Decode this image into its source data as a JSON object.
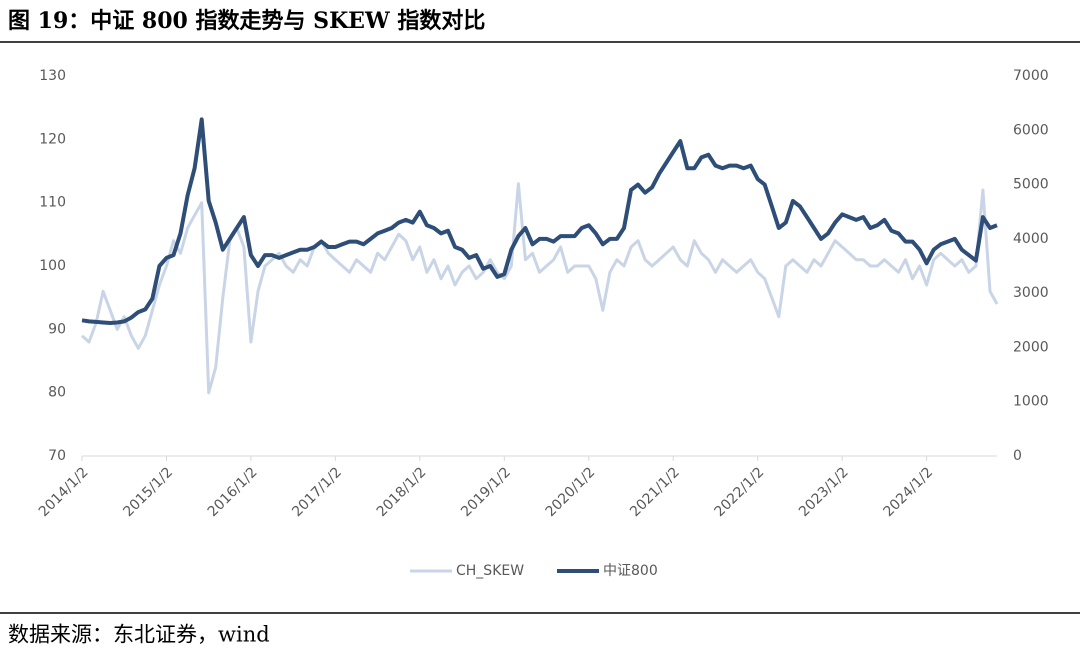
{
  "chart_data": {
    "type": "line",
    "title": "图 19：中证 800 指数走势与 SKEW 指数对比",
    "source": "数据来源：东北证券，wind",
    "categories": [
      "2014/1/2",
      null,
      null,
      null,
      null,
      null,
      null,
      null,
      null,
      null,
      null,
      null,
      "2015/1/2",
      null,
      null,
      null,
      null,
      null,
      null,
      null,
      null,
      null,
      null,
      null,
      "2016/1/2",
      null,
      null,
      null,
      null,
      null,
      null,
      null,
      null,
      null,
      null,
      null,
      "2017/1/2",
      null,
      null,
      null,
      null,
      null,
      null,
      null,
      null,
      null,
      null,
      null,
      "2018/1/2",
      null,
      null,
      null,
      null,
      null,
      null,
      null,
      null,
      null,
      null,
      null,
      "2019/1/2",
      null,
      null,
      null,
      null,
      null,
      null,
      null,
      null,
      null,
      null,
      null,
      "2020/1/2",
      null,
      null,
      null,
      null,
      null,
      null,
      null,
      null,
      null,
      null,
      null,
      "2021/1/2",
      null,
      null,
      null,
      null,
      null,
      null,
      null,
      null,
      null,
      null,
      null,
      "2022/1/2",
      null,
      null,
      null,
      null,
      null,
      null,
      null,
      null,
      null,
      null,
      null,
      "2023/1/2",
      null,
      null,
      null,
      null,
      null,
      null,
      null,
      null,
      null,
      null,
      null,
      "2024/1/2",
      null,
      null,
      null,
      null,
      null,
      null,
      null,
      null,
      null,
      null
    ],
    "series": [
      {
        "name": "CH_SKEW",
        "color": "#c9d5e6",
        "axis": "y",
        "values": [
          89,
          88,
          91,
          96,
          93,
          90,
          92,
          89,
          87,
          89,
          93,
          97,
          100,
          104,
          102,
          106,
          108,
          110,
          80,
          84,
          95,
          104,
          106,
          103,
          88,
          96,
          100,
          101,
          102,
          100,
          99,
          101,
          100,
          103,
          104,
          102,
          101,
          100,
          99,
          101,
          100,
          99,
          102,
          101,
          103,
          105,
          104,
          101,
          103,
          99,
          101,
          98,
          100,
          97,
          99,
          100,
          98,
          99,
          101,
          99,
          98,
          100,
          113,
          101,
          102,
          99,
          100,
          101,
          103,
          99,
          100,
          100,
          100,
          98,
          93,
          99,
          101,
          100,
          103,
          104,
          101,
          100,
          101,
          102,
          103,
          101,
          100,
          104,
          102,
          101,
          99,
          101,
          100,
          99,
          100,
          101,
          99,
          98,
          95,
          92,
          100,
          101,
          100,
          99,
          101,
          100,
          102,
          104,
          103,
          102,
          101,
          101,
          100,
          100,
          101,
          100,
          99,
          101,
          98,
          100,
          97,
          101,
          102,
          101,
          100,
          101,
          99,
          100,
          112,
          96,
          94
        ]
      },
      {
        "name": "中证800",
        "color": "#2e4e78",
        "axis": "y2",
        "values": [
          2500,
          2480,
          2470,
          2460,
          2450,
          2460,
          2480,
          2550,
          2650,
          2700,
          2900,
          3500,
          3650,
          3700,
          4100,
          4800,
          5300,
          6200,
          4700,
          4300,
          3800,
          4000,
          4200,
          4400,
          3700,
          3500,
          3700,
          3700,
          3650,
          3700,
          3750,
          3800,
          3800,
          3850,
          3950,
          3850,
          3850,
          3900,
          3950,
          3950,
          3900,
          4000,
          4100,
          4150,
          4200,
          4300,
          4350,
          4300,
          4500,
          4250,
          4200,
          4100,
          4150,
          3850,
          3800,
          3650,
          3700,
          3450,
          3500,
          3300,
          3350,
          3800,
          4050,
          4200,
          3900,
          4000,
          4000,
          3950,
          4050,
          4050,
          4050,
          4200,
          4250,
          4100,
          3900,
          4000,
          4000,
          4200,
          4900,
          5000,
          4850,
          4950,
          5200,
          5400,
          5600,
          5800,
          5300,
          5300,
          5500,
          5550,
          5350,
          5300,
          5350,
          5350,
          5300,
          5350,
          5100,
          5000,
          4600,
          4200,
          4300,
          4700,
          4600,
          4400,
          4200,
          4000,
          4100,
          4300,
          4450,
          4400,
          4350,
          4400,
          4200,
          4250,
          4350,
          4150,
          4100,
          3950,
          3950,
          3800,
          3550,
          3800,
          3900,
          3950,
          4000,
          3800,
          3700,
          3600,
          4400,
          4200,
          4250
        ]
      }
    ],
    "ylim": [
      70,
      130
    ],
    "yticks": [
      70,
      80,
      90,
      100,
      110,
      120,
      130
    ],
    "y2lim": [
      0,
      7000
    ],
    "y2ticks": [
      0,
      1000,
      2000,
      3000,
      4000,
      5000,
      6000,
      7000
    ],
    "grid": false,
    "legend": "bottom"
  }
}
